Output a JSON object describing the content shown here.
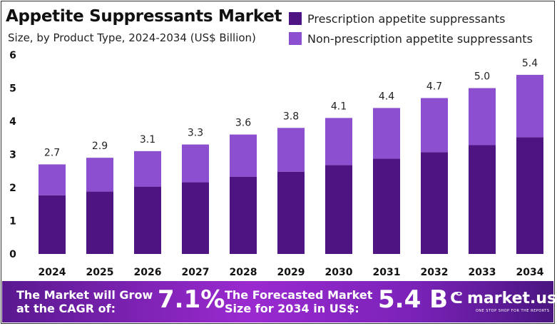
{
  "chart_data": {
    "type": "bar",
    "stacked": true,
    "title": "Appetite Suppressants Market",
    "subtitle": "Size, by Product Type, 2024-2034 (US$ Billion)",
    "categories": [
      "2024",
      "2025",
      "2026",
      "2027",
      "2028",
      "2029",
      "2030",
      "2031",
      "2032",
      "2033",
      "2034"
    ],
    "series": [
      {
        "name": "Prescription appetite suppressants",
        "color": "#4e1482",
        "values": [
          1.77,
          1.88,
          2.03,
          2.16,
          2.33,
          2.48,
          2.68,
          2.87,
          3.07,
          3.28,
          3.52
        ]
      },
      {
        "name": "Non-prescription appetite suppressants",
        "color": "#8c4fd0",
        "values": [
          0.93,
          1.02,
          1.07,
          1.14,
          1.27,
          1.32,
          1.42,
          1.53,
          1.63,
          1.72,
          1.88
        ]
      }
    ],
    "totals": [
      "2.7",
      "2.9",
      "3.1",
      "3.3",
      "3.6",
      "3.8",
      "4.1",
      "4.4",
      "4.7",
      "5.0",
      "5.4"
    ],
    "yticks": [
      "0",
      "1",
      "2",
      "3",
      "4",
      "5",
      "6"
    ],
    "ylim": [
      0,
      6
    ],
    "grid": false,
    "legend": "top-right"
  },
  "footer": {
    "cagr_label_1": "The Market will Grow",
    "cagr_label_2": "at the CAGR of:",
    "cagr_value": "7.1%",
    "forecast_label_1": "The Forecasted Market",
    "forecast_label_2": "Size for 2034 in US$:",
    "forecast_value": "5.4 B",
    "logo_name": "market.us",
    "logo_tagline": "ONE STOP SHOP FOR THE REPORTS"
  }
}
